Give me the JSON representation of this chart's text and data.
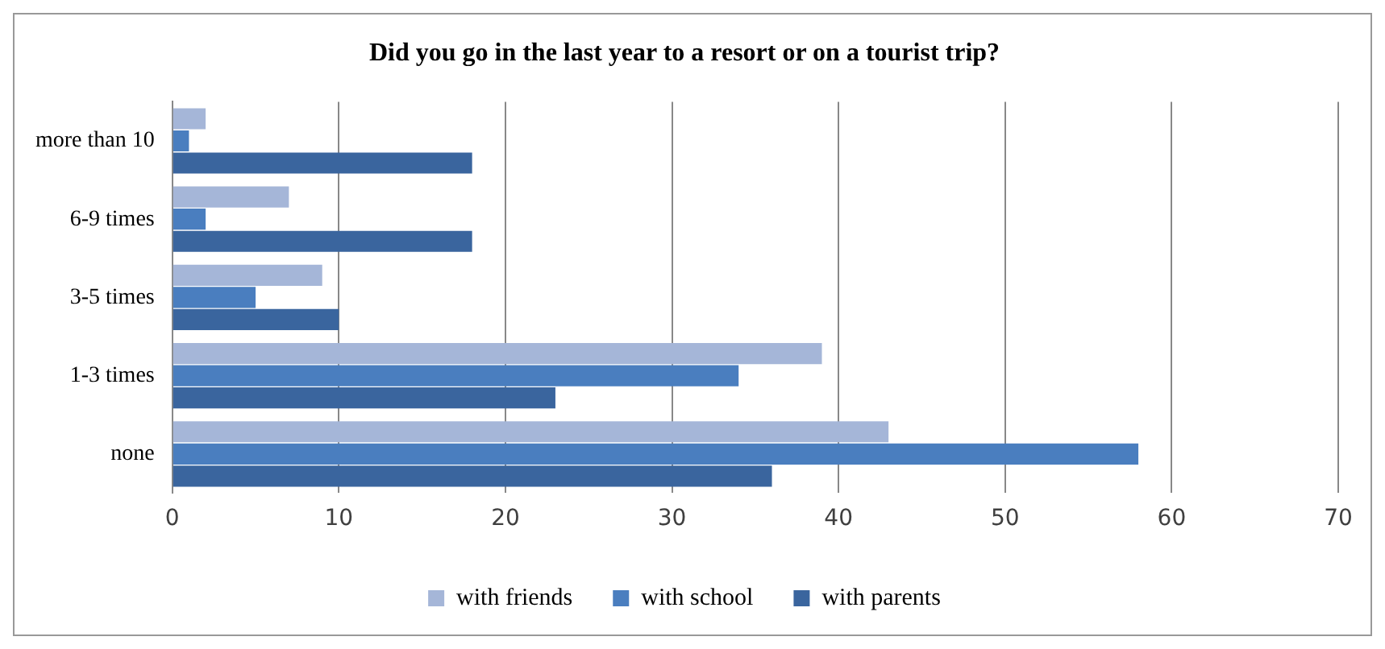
{
  "chart_data": {
    "type": "bar",
    "orientation": "horizontal",
    "title": "Did you go in the last year to a resort or on a tourist trip?",
    "categories": [
      "more than 10",
      "6-9 times",
      "3-5 times",
      "1-3 times",
      "none"
    ],
    "series": [
      {
        "name": "with friends",
        "color": "#a5b6d8",
        "values": [
          2,
          7,
          9,
          39,
          43
        ]
      },
      {
        "name": "with school",
        "color": "#4a7ebf",
        "values": [
          1,
          2,
          5,
          34,
          58
        ]
      },
      {
        "name": "with parents",
        "color": "#3a659e",
        "values": [
          18,
          18,
          10,
          23,
          36
        ]
      }
    ],
    "xlim": [
      0,
      70
    ],
    "xticks": [
      0,
      10,
      20,
      30,
      40,
      50,
      60,
      70
    ],
    "grid": "x",
    "legend": "bottom"
  }
}
